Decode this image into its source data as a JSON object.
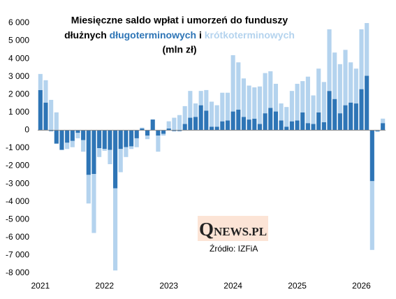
{
  "chart_data": {
    "type": "bar",
    "title": [
      "Miesięczne saldo wpłat i umorzeń do funduszy",
      "dłużnych",
      "i",
      "(mln zł)"
    ],
    "source": "Źródło: IZFiA",
    "logo": "QNEWS.PL",
    "stacked": true,
    "categories": [
      "2021",
      null,
      null,
      null,
      null,
      null,
      null,
      null,
      null,
      null,
      null,
      null,
      "2022",
      null,
      null,
      null,
      null,
      null,
      null,
      null,
      null,
      null,
      null,
      null,
      "2023",
      null,
      null,
      null,
      null,
      null,
      null,
      null,
      null,
      null,
      null,
      null,
      "2024",
      null,
      null,
      null,
      null,
      null,
      null,
      null,
      null,
      null,
      null,
      null,
      "2025",
      null,
      null,
      null,
      null,
      null,
      null,
      null,
      null,
      null,
      null,
      null,
      "2026",
      null,
      null,
      null,
      null
    ],
    "series": [
      {
        "name": "długoterminowych",
        "color": "#2e75b6",
        "values": [
          2250,
          1550,
          -50,
          -750,
          -1100,
          -700,
          -600,
          -150,
          -550,
          -2500,
          -2450,
          -1000,
          -1050,
          -1100,
          -3250,
          -1050,
          -950,
          -900,
          -450,
          100,
          -300,
          600,
          -300,
          -200,
          100,
          -50,
          -50,
          350,
          700,
          750,
          1400,
          1100,
          200,
          200,
          500,
          550,
          1050,
          1150,
          750,
          600,
          650,
          350,
          950,
          1250,
          1050,
          550,
          200,
          500,
          550,
          1000,
          400,
          350,
          1000,
          450,
          2200,
          1750,
          950,
          1400,
          1550,
          1500,
          2300,
          3050,
          -2850,
          -50,
          400
        ]
      },
      {
        "name": "krótkoterminowych",
        "color": "#b4d3ee",
        "values": [
          900,
          1250,
          1700,
          1000,
          0,
          -350,
          -350,
          -300,
          -650,
          -1600,
          -3300,
          -500,
          -100,
          -800,
          -4600,
          -1300,
          -550,
          -150,
          -500,
          50,
          -200,
          0,
          -900,
          -100,
          400,
          700,
          850,
          1000,
          1500,
          750,
          800,
          1150,
          1400,
          1200,
          1600,
          1550,
          3150,
          2650,
          2150,
          1900,
          1750,
          2100,
          2250,
          2050,
          1550,
          950,
          1100,
          1700,
          2050,
          1750,
          2600,
          1600,
          2450,
          2250,
          3450,
          2600,
          2750,
          3100,
          2250,
          1950,
          3350,
          2950,
          -3850,
          -50,
          250
        ]
      }
    ],
    "ylim": [
      -8000,
      6000
    ],
    "yticks": [
      {
        "value": 6000,
        "label": "6 000"
      },
      {
        "value": 5000,
        "label": "5 000"
      },
      {
        "value": 4000,
        "label": "4 000"
      },
      {
        "value": 3000,
        "label": "3 000"
      },
      {
        "value": 2000,
        "label": "2 000"
      },
      {
        "value": 1000,
        "label": "1 000"
      },
      0,
      {
        "value": -1000,
        "label": "-1 000"
      },
      {
        "value": -2000,
        "label": "-2 000"
      },
      {
        "value": -3000,
        "label": "-3 000"
      },
      {
        "value": -4000,
        "label": "-4 000"
      },
      {
        "value": -5000,
        "label": "-5 000"
      },
      {
        "value": -6000,
        "label": "-6 000"
      },
      {
        "value": -7000,
        "label": "-7 000"
      },
      {
        "value": -8000,
        "label": "-8 000"
      }
    ],
    "grid": false
  }
}
